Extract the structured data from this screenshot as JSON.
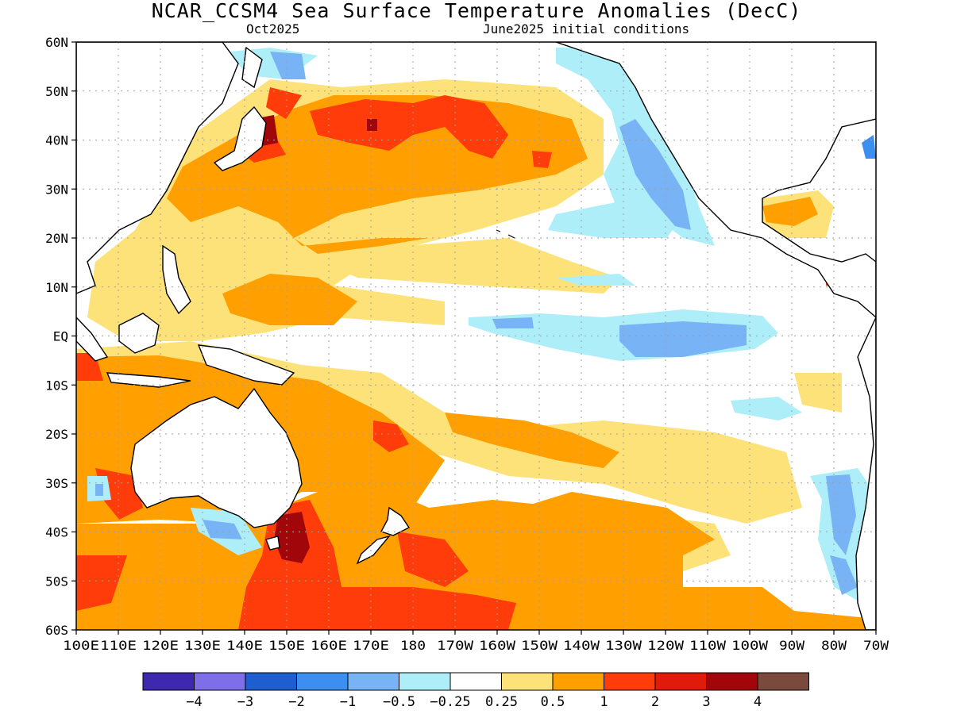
{
  "title": "NCAR_CCSM4 Sea Surface Temperature Anomalies (DecC)",
  "subtitle_left": "Oct2025",
  "subtitle_right": "June2025 initial conditions",
  "lat_labels": [
    "60N",
    "50N",
    "40N",
    "30N",
    "20N",
    "10N",
    "EQ",
    "10S",
    "20S",
    "30S",
    "40S",
    "50S",
    "60S"
  ],
  "lon_labels": [
    "100E",
    "110E",
    "120E",
    "130E",
    "140E",
    "150E",
    "160E",
    "170E",
    "180",
    "170W",
    "160W",
    "150W",
    "140W",
    "130W",
    "120W",
    "110W",
    "100W",
    "90W",
    "80W",
    "70W"
  ],
  "colorbar": {
    "colors": [
      "#3f28b0",
      "#7e6ee8",
      "#1e5fd0",
      "#3c8ef0",
      "#78b4f5",
      "#aeeef8",
      "#ffffff",
      "#fde27a",
      "#ffa000",
      "#ff3c0a",
      "#e11b0a",
      "#a0060a",
      "#7a4a3c"
    ],
    "labels": [
      "−4",
      "−3",
      "−2",
      "−1",
      "−0.5",
      "−0.25",
      "0.25",
      "0.5",
      "1",
      "2",
      "3",
      "4"
    ]
  },
  "palette": {
    "cool_light": "#aeeef8",
    "cool_mid": "#78b4f5",
    "cool_strong": "#3c8ef0",
    "warm_light": "#fde27a",
    "warm_mid": "#ffa000",
    "warm_strong": "#ff3c0a",
    "warm_very": "#e11b0a",
    "warm_extreme": "#a0060a",
    "land": "#ffffff",
    "coast": "#000000"
  }
}
